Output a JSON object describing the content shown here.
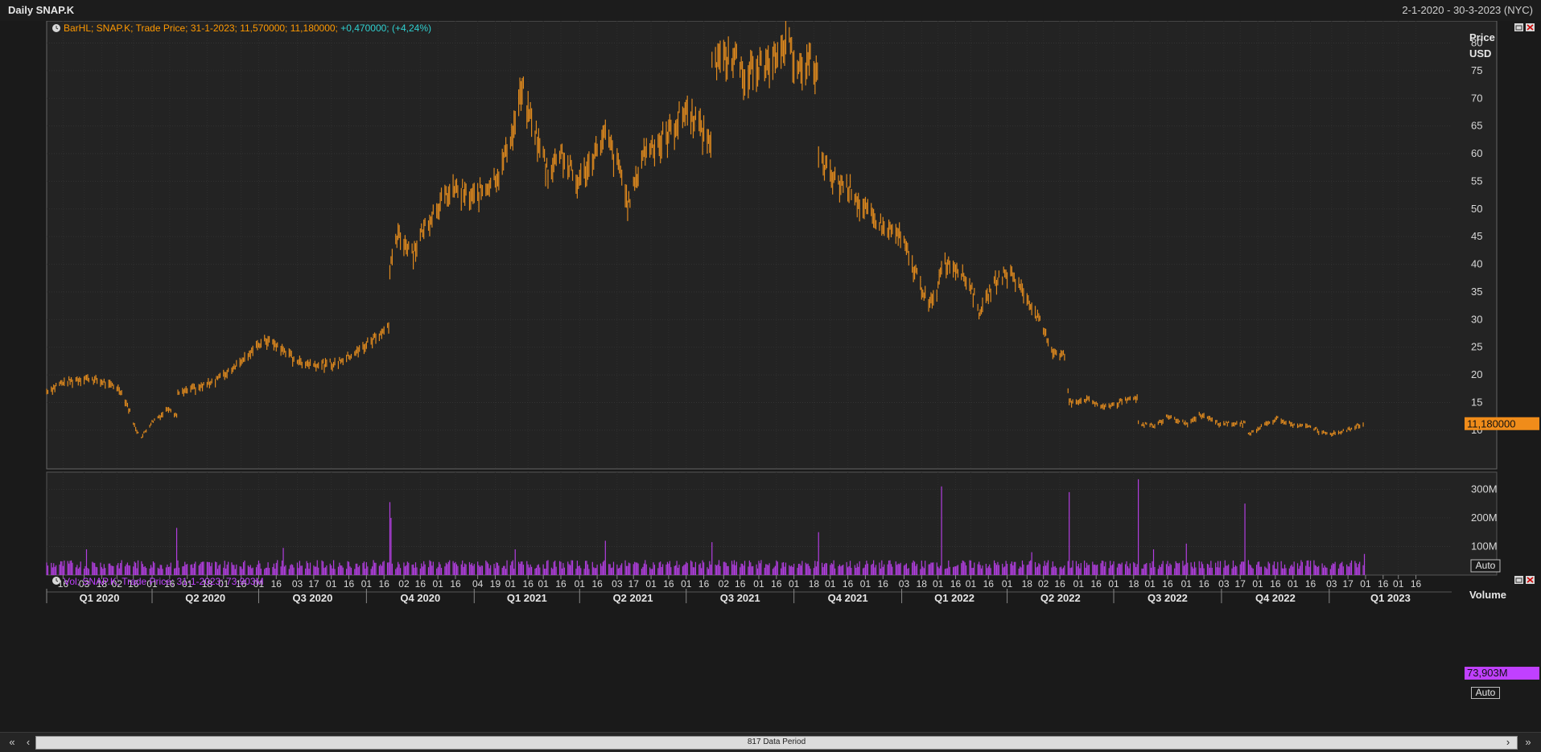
{
  "window": {
    "title": "Daily SNAP.K",
    "date_range": "2-1-2020 - 30-3-2023 (NYC)"
  },
  "price_panel": {
    "legend_text": "BarHL; SNAP.K; Trade Price; 31-1-2023; 11,570000; 11,180000; ",
    "legend_change": "+0,470000; (+4,24%)",
    "axis_title_line1": "Price",
    "axis_title_line2": "USD",
    "last_value_label": "11,180000",
    "auto_button": "Auto",
    "bar_color": "#e08a1e",
    "label_color": "#ff9900"
  },
  "volume_panel": {
    "legend_text": "Vol; SNAP.K; Trade Price; 31-1-2023; 73,903M",
    "axis_title": "Volume",
    "last_value_label": "73,903M",
    "auto_button": "Auto",
    "bar_color": "#b23ee0",
    "label_color": "#c040ff"
  },
  "footer": {
    "period_label": "817 Data Period"
  },
  "icons": [
    "history-clock-icon",
    "restore-icon",
    "close-icon",
    "first-page-icon",
    "previous-page-icon",
    "next-page-icon",
    "last-page-icon"
  ],
  "chart_data": [
    {
      "type": "bar",
      "title": "BarHL; SNAP.K; Trade Price",
      "ylabel": "Price USD",
      "ylim": [
        3,
        84
      ],
      "y_ticks": [
        10,
        15,
        20,
        25,
        30,
        35,
        40,
        45,
        50,
        55,
        60,
        65,
        70,
        75,
        80
      ],
      "x_range": [
        "2020-01-02",
        "2023-03-30"
      ],
      "x_ticks": [
        "2020-01-16",
        "2020-02-03",
        "2020-02-18",
        "2020-03-02",
        "2020-03-16",
        "2020-04-01",
        "2020-04-16",
        "2020-05-01",
        "2020-05-18",
        "2020-06-01",
        "2020-06-16",
        "2020-07-01",
        "2020-07-16",
        "2020-08-03",
        "2020-08-17",
        "2020-09-01",
        "2020-09-16",
        "2020-10-01",
        "2020-10-16",
        "2020-11-02",
        "2020-11-16",
        "2020-12-01",
        "2020-12-16",
        "2021-01-04",
        "2021-01-19",
        "2021-02-01",
        "2021-02-16",
        "2021-03-01",
        "2021-03-16",
        "2021-04-01",
        "2021-04-16",
        "2021-05-03",
        "2021-05-17",
        "2021-06-01",
        "2021-06-16",
        "2021-07-01",
        "2021-07-16",
        "2021-08-02",
        "2021-08-16",
        "2021-09-01",
        "2021-09-16",
        "2021-10-01",
        "2021-10-18",
        "2021-11-01",
        "2021-11-16",
        "2021-12-01",
        "2021-12-16",
        "2022-01-03",
        "2022-01-18",
        "2022-02-01",
        "2022-02-16",
        "2022-03-01",
        "2022-03-16",
        "2022-04-01",
        "2022-04-18",
        "2022-05-02",
        "2022-05-16",
        "2022-06-01",
        "2022-06-16",
        "2022-07-01",
        "2022-07-18",
        "2022-08-01",
        "2022-08-16",
        "2022-09-01",
        "2022-09-16",
        "2022-10-03",
        "2022-10-17",
        "2022-11-01",
        "2022-11-16",
        "2022-12-01",
        "2022-12-16",
        "2023-01-03",
        "2023-01-17",
        "2023-02-01",
        "2023-02-16",
        "2023-03-01",
        "2023-03-16"
      ],
      "x_tick_labels": [
        "16",
        "03",
        "18",
        "02",
        "16",
        "01",
        "16",
        "01",
        "18",
        "01",
        "16",
        "01",
        "16",
        "03",
        "17",
        "01",
        "16",
        "01",
        "16",
        "02",
        "16",
        "01",
        "16",
        "04",
        "19",
        "01",
        "16",
        "01",
        "16",
        "01",
        "16",
        "03",
        "17",
        "01",
        "16",
        "01",
        "16",
        "02",
        "16",
        "01",
        "16",
        "01",
        "18",
        "01",
        "16",
        "01",
        "16",
        "03",
        "18",
        "01",
        "16",
        "01",
        "16",
        "01",
        "18",
        "02",
        "16",
        "01",
        "16",
        "01",
        "18",
        "01",
        "16",
        "01",
        "16",
        "03",
        "17",
        "01",
        "16",
        "01",
        "16",
        "03",
        "17",
        "01",
        "16",
        "01",
        "16"
      ],
      "quarter_labels": [
        "Q1 2020",
        "Q2 2020",
        "Q3 2020",
        "Q4 2020",
        "Q1 2021",
        "Q2 2021",
        "Q3 2021",
        "Q4 2021",
        "Q1 2022",
        "Q2 2022",
        "Q3 2022",
        "Q4 2022",
        "Q1 2023"
      ],
      "series_highs": [
        {
          "date": "2020-01-02",
          "value": 17.5
        },
        {
          "date": "2020-01-15",
          "value": 19.0
        },
        {
          "date": "2020-02-03",
          "value": 20.0
        },
        {
          "date": "2020-02-14",
          "value": 19.5
        },
        {
          "date": "2020-02-24",
          "value": 18.8
        },
        {
          "date": "2020-03-04",
          "value": 18.0
        },
        {
          "date": "2020-03-10",
          "value": 15.5
        },
        {
          "date": "2020-03-18",
          "value": 10.5
        },
        {
          "date": "2020-03-23",
          "value": 9.0
        },
        {
          "date": "2020-03-31",
          "value": 11.5
        },
        {
          "date": "2020-04-08",
          "value": 13.0
        },
        {
          "date": "2020-04-15",
          "value": 14.5
        },
        {
          "date": "2020-04-22",
          "value": 13.0
        },
        {
          "date": "2020-04-23",
          "value": 17.0
        },
        {
          "date": "2020-05-05",
          "value": 18.0
        },
        {
          "date": "2020-05-15",
          "value": 18.5
        },
        {
          "date": "2020-06-01",
          "value": 20.5
        },
        {
          "date": "2020-06-10",
          "value": 22.0
        },
        {
          "date": "2020-06-22",
          "value": 24.5
        },
        {
          "date": "2020-07-08",
          "value": 27.0
        },
        {
          "date": "2020-07-23",
          "value": 25.0
        },
        {
          "date": "2020-08-03",
          "value": 23.0
        },
        {
          "date": "2020-08-20",
          "value": 22.5
        },
        {
          "date": "2020-09-03",
          "value": 22.5
        },
        {
          "date": "2020-09-18",
          "value": 24.0
        },
        {
          "date": "2020-10-06",
          "value": 27.0
        },
        {
          "date": "2020-10-20",
          "value": 29.5
        },
        {
          "date": "2020-10-21",
          "value": 40.0
        },
        {
          "date": "2020-10-28",
          "value": 46.5
        },
        {
          "date": "2020-11-10",
          "value": 43.5
        },
        {
          "date": "2020-11-20",
          "value": 48.0
        },
        {
          "date": "2020-12-01",
          "value": 52.0
        },
        {
          "date": "2020-12-14",
          "value": 55.0
        },
        {
          "date": "2020-12-29",
          "value": 53.5
        },
        {
          "date": "2021-01-11",
          "value": 55.0
        },
        {
          "date": "2021-01-22",
          "value": 58.0
        },
        {
          "date": "2021-02-02",
          "value": 65.0
        },
        {
          "date": "2021-02-10",
          "value": 73.5
        },
        {
          "date": "2021-02-23",
          "value": 65.0
        },
        {
          "date": "2021-03-05",
          "value": 58.0
        },
        {
          "date": "2021-03-16",
          "value": 62.0
        },
        {
          "date": "2021-03-29",
          "value": 56.0
        },
        {
          "date": "2021-04-12",
          "value": 61.0
        },
        {
          "date": "2021-04-23",
          "value": 65.0
        },
        {
          "date": "2021-05-06",
          "value": 58.0
        },
        {
          "date": "2021-05-13",
          "value": 52.0
        },
        {
          "date": "2021-05-26",
          "value": 62.0
        },
        {
          "date": "2021-06-09",
          "value": 64.0
        },
        {
          "date": "2021-06-22",
          "value": 67.0
        },
        {
          "date": "2021-07-02",
          "value": 70.0
        },
        {
          "date": "2021-07-15",
          "value": 66.0
        },
        {
          "date": "2021-07-22",
          "value": 64.0
        },
        {
          "date": "2021-07-23",
          "value": 78.0
        },
        {
          "date": "2021-08-06",
          "value": 79.5
        },
        {
          "date": "2021-08-20",
          "value": 77.0
        },
        {
          "date": "2021-09-01",
          "value": 77.5
        },
        {
          "date": "2021-09-14",
          "value": 78.5
        },
        {
          "date": "2021-09-24",
          "value": 83.0
        },
        {
          "date": "2021-10-07",
          "value": 77.0
        },
        {
          "date": "2021-10-15",
          "value": 79.0
        },
        {
          "date": "2021-10-21",
          "value": 76.5
        },
        {
          "date": "2021-10-22",
          "value": 60.5
        },
        {
          "date": "2021-11-05",
          "value": 56.5
        },
        {
          "date": "2021-11-18",
          "value": 55.0
        },
        {
          "date": "2021-12-01",
          "value": 51.0
        },
        {
          "date": "2021-12-15",
          "value": 48.0
        },
        {
          "date": "2021-12-30",
          "value": 46.5
        },
        {
          "date": "2022-01-12",
          "value": 40.0
        },
        {
          "date": "2022-01-24",
          "value": 33.5
        },
        {
          "date": "2022-01-31",
          "value": 36.0
        },
        {
          "date": "2022-02-04",
          "value": 41.5
        },
        {
          "date": "2022-02-15",
          "value": 41.0
        },
        {
          "date": "2022-03-01",
          "value": 37.0
        },
        {
          "date": "2022-03-08",
          "value": 32.0
        },
        {
          "date": "2022-03-22",
          "value": 38.0
        },
        {
          "date": "2022-04-04",
          "value": 39.5
        },
        {
          "date": "2022-04-18",
          "value": 35.0
        },
        {
          "date": "2022-04-28",
          "value": 30.5
        },
        {
          "date": "2022-05-10",
          "value": 25.0
        },
        {
          "date": "2022-05-20",
          "value": 24.0
        },
        {
          "date": "2022-05-24",
          "value": 15.5
        },
        {
          "date": "2022-06-08",
          "value": 16.0
        },
        {
          "date": "2022-06-22",
          "value": 14.5
        },
        {
          "date": "2022-07-08",
          "value": 15.5
        },
        {
          "date": "2022-07-21",
          "value": 16.5
        },
        {
          "date": "2022-07-22",
          "value": 11.5
        },
        {
          "date": "2022-08-05",
          "value": 11.0
        },
        {
          "date": "2022-08-16",
          "value": 13.0
        },
        {
          "date": "2022-09-01",
          "value": 11.5
        },
        {
          "date": "2022-09-13",
          "value": 13.2
        },
        {
          "date": "2022-09-29",
          "value": 11.5
        },
        {
          "date": "2022-10-14",
          "value": 11.5
        },
        {
          "date": "2022-10-21",
          "value": 11.5
        },
        {
          "date": "2022-10-24",
          "value": 9.5
        },
        {
          "date": "2022-11-08",
          "value": 11.5
        },
        {
          "date": "2022-11-18",
          "value": 12.5
        },
        {
          "date": "2022-12-02",
          "value": 11.0
        },
        {
          "date": "2022-12-15",
          "value": 11.0
        },
        {
          "date": "2022-12-29",
          "value": 9.5
        },
        {
          "date": "2023-01-13",
          "value": 10.0
        },
        {
          "date": "2023-01-31",
          "value": 11.6
        }
      ]
    },
    {
      "type": "bar",
      "title": "Vol; SNAP.K; Trade Price",
      "ylabel": "Volume",
      "ylim": [
        0,
        360
      ],
      "y_ticks": [
        100,
        200,
        300
      ],
      "y_tick_labels": [
        "100M",
        "200M",
        "300M"
      ],
      "unit": "M",
      "baseline": 35,
      "spikes": [
        {
          "date": "2020-02-05",
          "value": 90
        },
        {
          "date": "2020-04-22",
          "value": 165
        },
        {
          "date": "2020-07-22",
          "value": 95
        },
        {
          "date": "2020-10-21",
          "value": 255
        },
        {
          "date": "2020-10-22",
          "value": 200
        },
        {
          "date": "2021-02-05",
          "value": 90
        },
        {
          "date": "2021-04-23",
          "value": 120
        },
        {
          "date": "2021-07-23",
          "value": 115
        },
        {
          "date": "2021-10-22",
          "value": 150
        },
        {
          "date": "2022-02-04",
          "value": 310
        },
        {
          "date": "2022-04-22",
          "value": 80
        },
        {
          "date": "2022-05-24",
          "value": 290
        },
        {
          "date": "2022-07-22",
          "value": 335
        },
        {
          "date": "2022-08-04",
          "value": 90
        },
        {
          "date": "2022-09-01",
          "value": 110
        },
        {
          "date": "2022-10-21",
          "value": 250
        },
        {
          "date": "2023-01-31",
          "value": 73.903
        }
      ]
    }
  ]
}
